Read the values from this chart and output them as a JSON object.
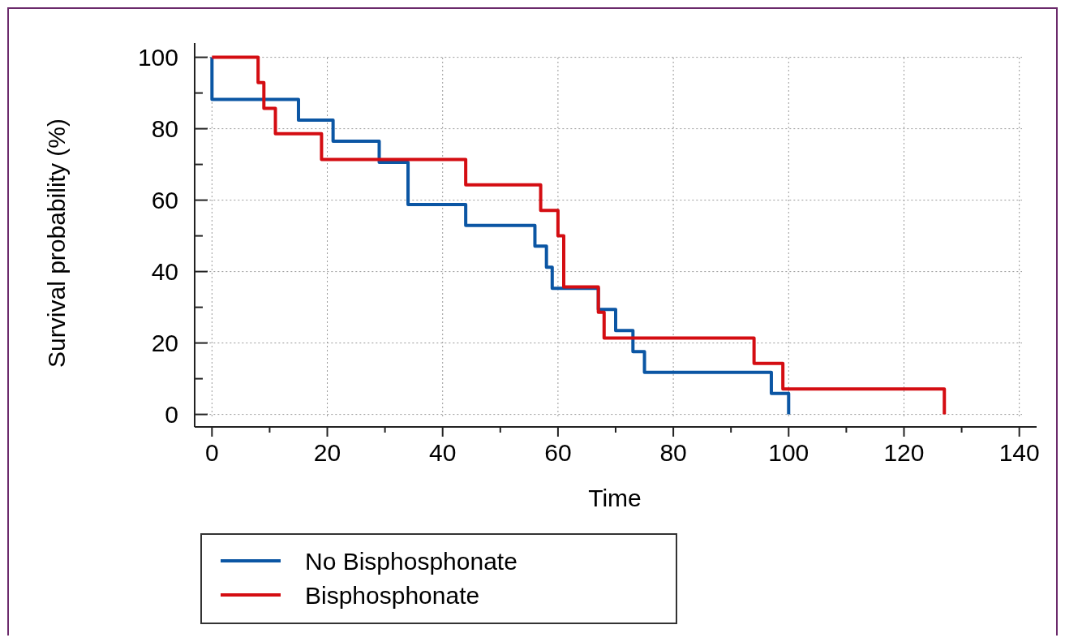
{
  "chart_data": {
    "type": "step",
    "xlabel": "Time",
    "ylabel": "Survival probability (%)",
    "xlim": [
      -3,
      143
    ],
    "ylim": [
      -3.5,
      104
    ],
    "xticks": [
      0,
      {
        "value": 10,
        "label": null
      },
      20,
      {
        "value": 30,
        "label": null
      },
      40,
      {
        "value": 50,
        "label": null
      },
      60,
      {
        "value": 70,
        "label": null
      },
      80,
      {
        "value": 90,
        "label": null
      },
      100,
      {
        "value": 110,
        "label": null
      },
      120,
      {
        "value": 130,
        "label": null
      },
      140
    ],
    "yticks": [
      0,
      {
        "value": 10,
        "label": null
      },
      20,
      {
        "value": 30,
        "label": null
      },
      40,
      {
        "value": 50,
        "label": null
      },
      60,
      {
        "value": 70,
        "label": null
      },
      80,
      {
        "value": 90,
        "label": null
      },
      100
    ],
    "grid": true,
    "legend": "bottom",
    "line_style": "solid",
    "series": [
      {
        "name": "No Bisphosphonate",
        "color": "#0b56a4",
        "x": [
          0,
          0,
          15,
          21,
          29,
          34,
          44,
          56,
          58,
          59,
          67,
          70,
          73,
          75,
          97,
          100
        ],
        "values": [
          100,
          88.2,
          82.4,
          76.5,
          70.6,
          58.8,
          52.9,
          47.1,
          41.2,
          35.3,
          29.4,
          23.5,
          17.6,
          11.8,
          5.9,
          0
        ]
      },
      {
        "name": "Bisphosphonate",
        "color": "#d40d12",
        "x": [
          0,
          8,
          9,
          11,
          19,
          44,
          57,
          60,
          61,
          67,
          68,
          94,
          99,
          127
        ],
        "values": [
          100,
          92.9,
          85.7,
          78.6,
          71.4,
          64.3,
          57.1,
          50,
          35.7,
          28.6,
          21.4,
          14.3,
          7.1,
          0
        ]
      }
    ]
  }
}
